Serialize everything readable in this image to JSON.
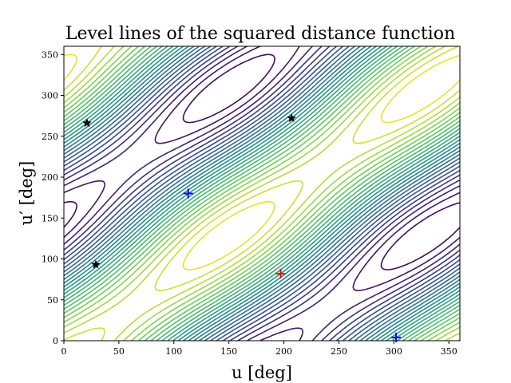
{
  "chart_data": {
    "type": "contour",
    "title": "Level lines of the squared distance function",
    "xlabel": "u [deg]",
    "ylabel": "u′ [deg]",
    "xlim": [
      0,
      360
    ],
    "ylim": [
      0,
      360
    ],
    "xticks": [
      0,
      50,
      100,
      150,
      200,
      250,
      300,
      350
    ],
    "yticks": [
      0,
      50,
      100,
      150,
      200,
      250,
      300,
      350
    ],
    "colormap": [
      "#440154",
      "#3b528b",
      "#21918c",
      "#5ec962",
      "#fde725"
    ],
    "markers": {
      "red_plus": [
        {
          "x": 197,
          "y": 82
        }
      ],
      "blue_plus": [
        {
          "x": 113,
          "y": 180
        },
        {
          "x": 302,
          "y": 4
        }
      ],
      "black_star": [
        {
          "x": 21,
          "y": 266
        },
        {
          "x": 29,
          "y": 93
        },
        {
          "x": 207,
          "y": 272
        }
      ]
    },
    "marker_colors": {
      "red_plus": "#ff0000",
      "blue_plus": "#0000ff",
      "black_star": "#000000"
    },
    "grid": false,
    "legend": "none"
  }
}
